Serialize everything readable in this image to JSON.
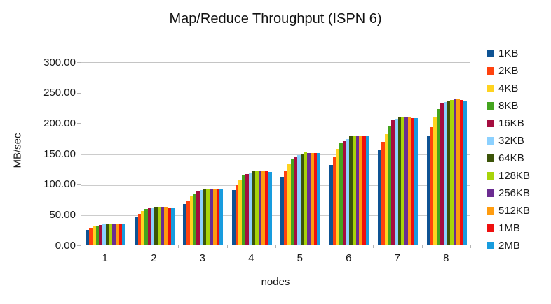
{
  "title": "Map/Reduce Throughput (ISPN 6)",
  "chart_data": {
    "type": "bar",
    "title": "Map/Reduce Throughput (ISPN 6)",
    "xlabel": "nodes",
    "ylabel": "MB/sec",
    "categories": [
      "1",
      "2",
      "3",
      "4",
      "5",
      "6",
      "7",
      "8"
    ],
    "ylim": [
      0,
      300
    ],
    "ytick_step": 50,
    "ytick_labels": [
      "0.00",
      "50.00",
      "100.00",
      "150.00",
      "200.00",
      "250.00",
      "300.00"
    ],
    "grid": true,
    "legend_position": "right",
    "series": [
      {
        "name": "1KB",
        "color": "#0e5394",
        "values": [
          24,
          45,
          66,
          89,
          111,
          131,
          155,
          177
        ]
      },
      {
        "name": "2KB",
        "color": "#ff420e",
        "values": [
          28,
          50,
          72,
          97,
          121,
          144,
          168,
          192
        ]
      },
      {
        "name": "4KB",
        "color": "#ffd320",
        "values": [
          30,
          55,
          79,
          106,
          132,
          157,
          181,
          209
        ]
      },
      {
        "name": "8KB",
        "color": "#44a41e",
        "values": [
          31,
          58,
          84,
          113,
          140,
          166,
          195,
          222
        ]
      },
      {
        "name": "16KB",
        "color": "#a50d3f",
        "values": [
          32,
          60,
          88,
          116,
          144,
          170,
          204,
          231
        ]
      },
      {
        "name": "32KB",
        "color": "#8cd1ff",
        "values": [
          33,
          61,
          89,
          118,
          147,
          173,
          206,
          234
        ]
      },
      {
        "name": "64KB",
        "color": "#3c5409",
        "values": [
          33,
          62,
          90,
          120,
          149,
          177,
          209,
          236
        ]
      },
      {
        "name": "128KB",
        "color": "#a8d40a",
        "values": [
          33,
          62,
          91,
          120,
          151,
          178,
          210,
          237
        ]
      },
      {
        "name": "256KB",
        "color": "#6b2c91",
        "values": [
          33,
          62,
          91,
          120,
          150,
          178,
          210,
          238
        ]
      },
      {
        "name": "512KB",
        "color": "#ff9c0f",
        "values": [
          33,
          62,
          90,
          120,
          150,
          179,
          209,
          238
        ]
      },
      {
        "name": "1MB",
        "color": "#ee100f",
        "values": [
          33,
          61,
          90,
          120,
          150,
          178,
          207,
          237
        ]
      },
      {
        "name": "2MB",
        "color": "#189cde",
        "values": [
          33,
          61,
          91,
          119,
          150,
          177,
          207,
          236
        ]
      }
    ]
  }
}
